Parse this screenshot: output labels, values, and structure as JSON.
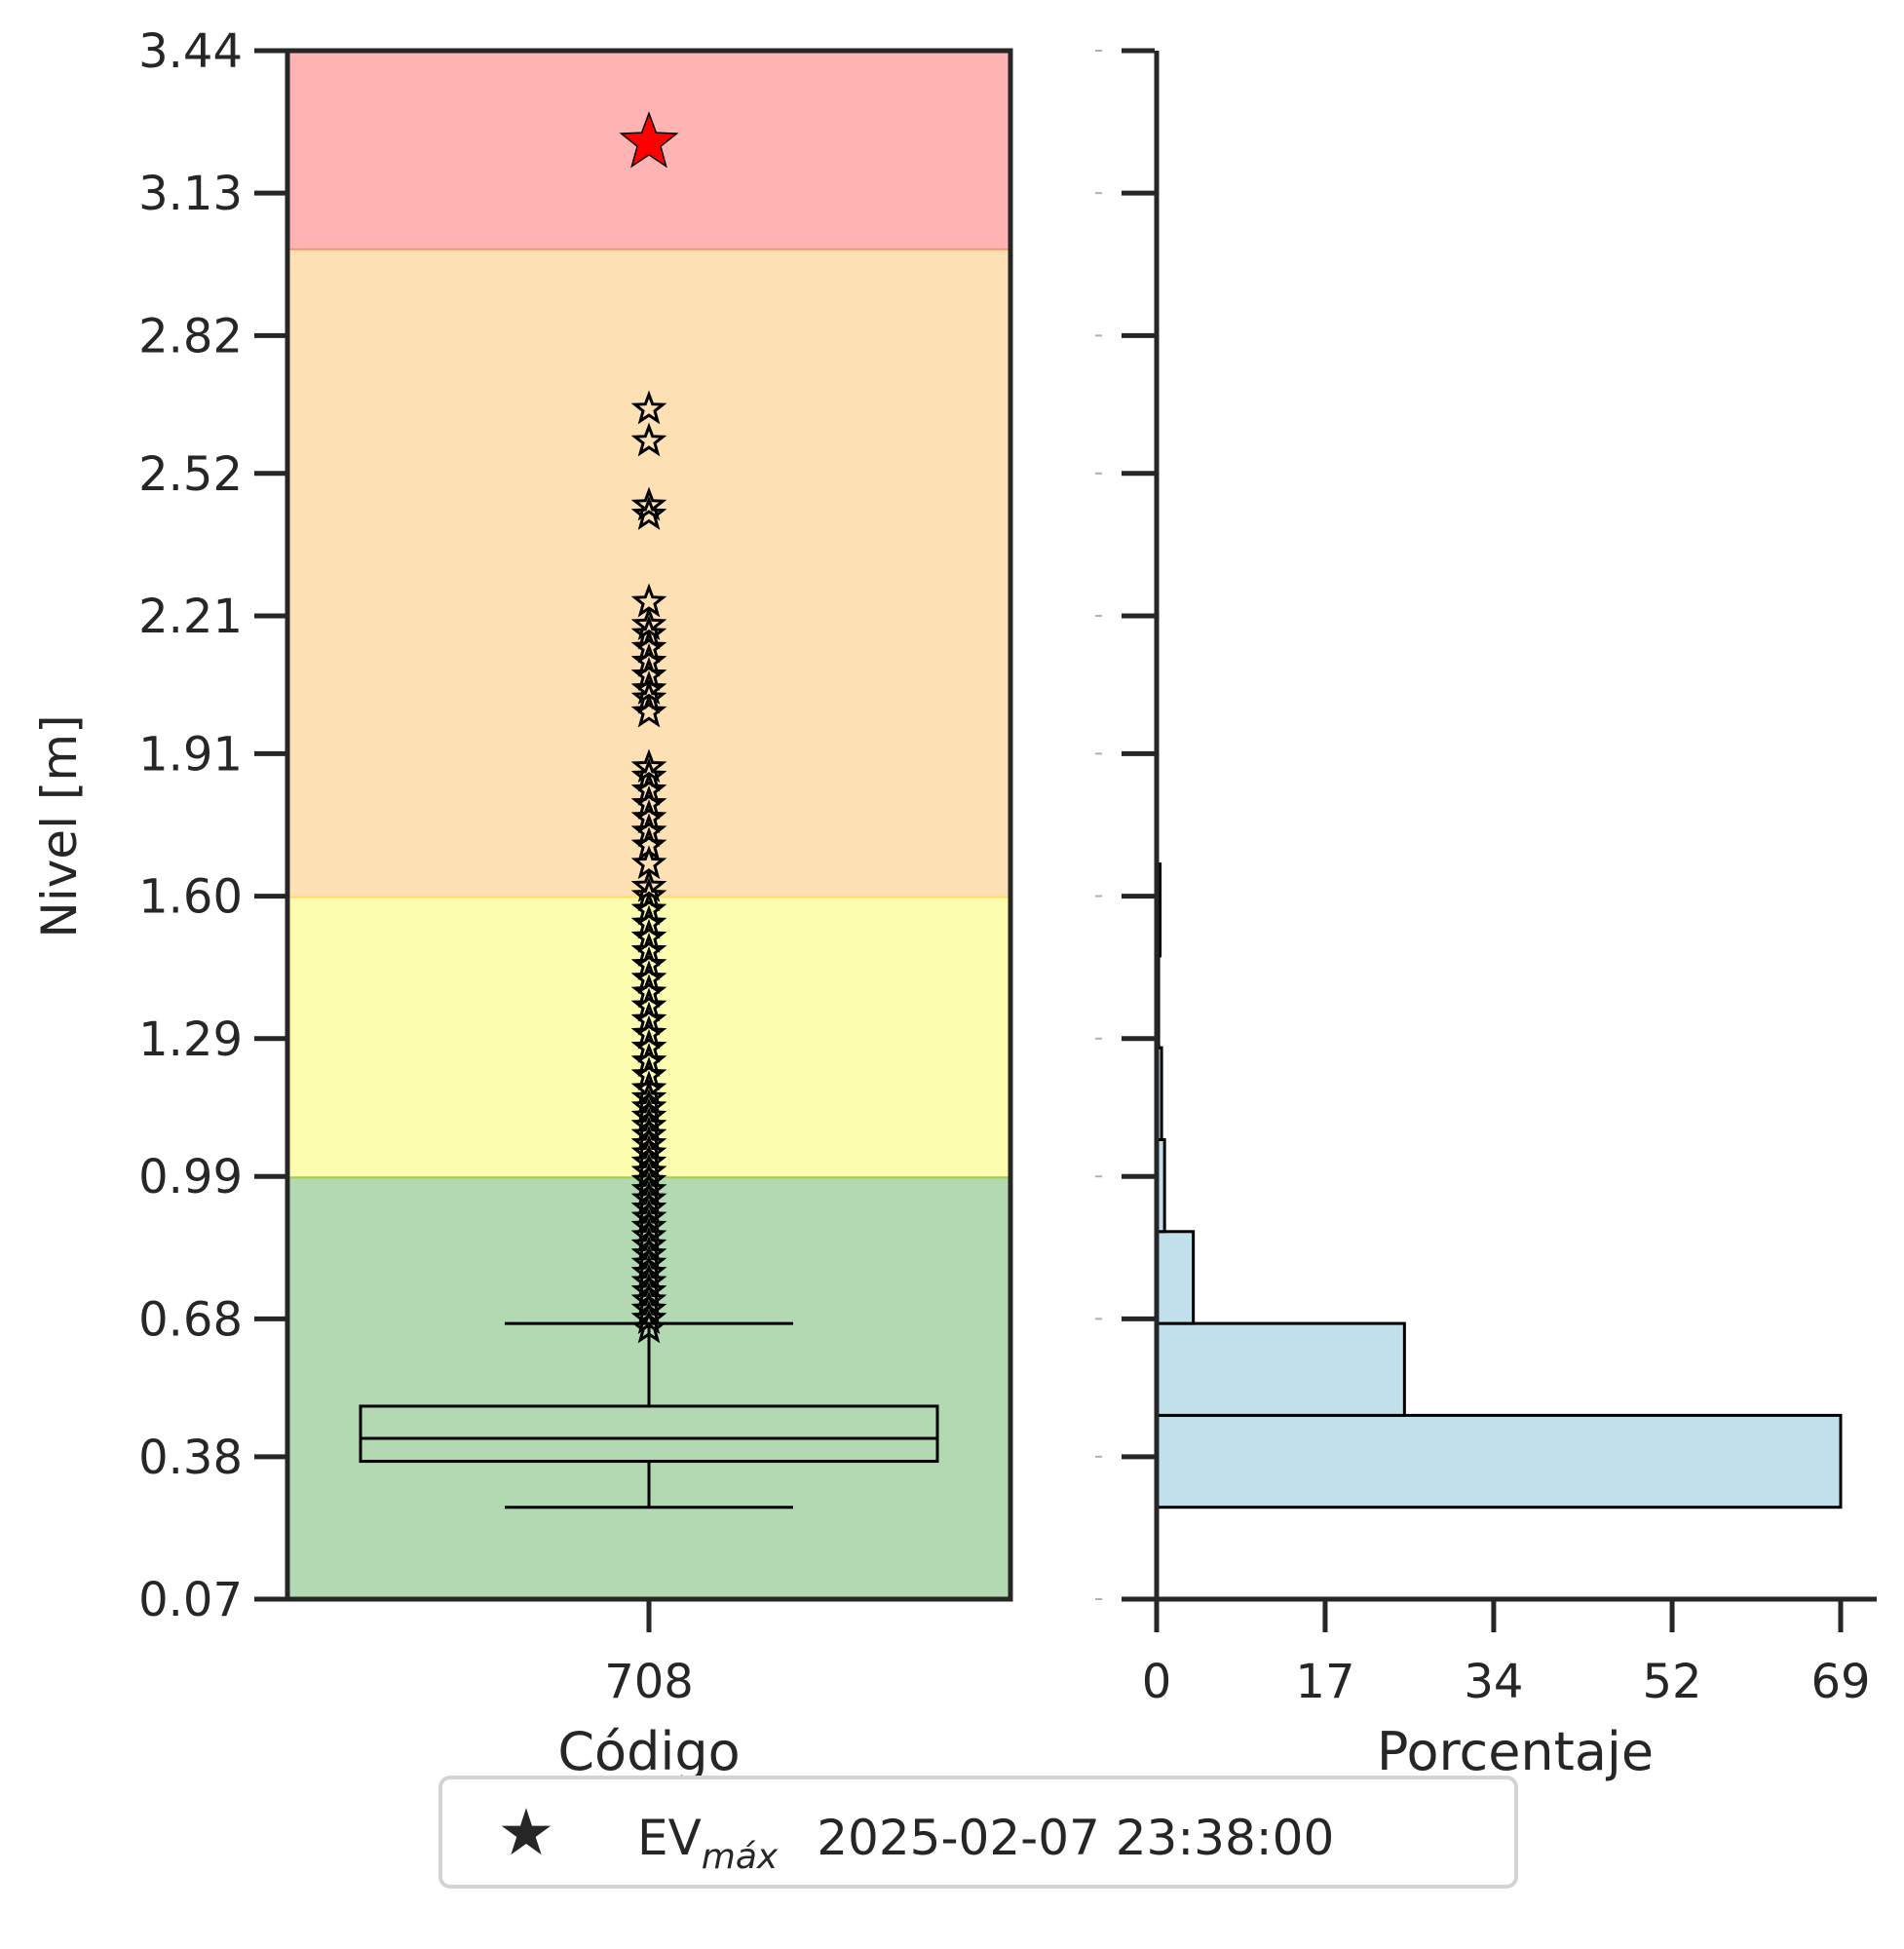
{
  "chart_data": [
    {
      "type": "box",
      "ylabel": "Nivel [m]",
      "xlabel": "Código",
      "categories": [
        "708"
      ],
      "ylim": [
        0.07,
        3.44
      ],
      "yticks": [
        "0.07",
        "0.38",
        "0.68",
        "0.99",
        "1.29",
        "1.60",
        "1.91",
        "2.21",
        "2.52",
        "2.82",
        "3.13",
        "3.44"
      ],
      "bands": [
        {
          "from": 0.07,
          "to": 0.99,
          "color": "#b2d9b2",
          "edge": "#9acd32"
        },
        {
          "from": 0.99,
          "to": 1.6,
          "color": "#fdfdb0",
          "edge": "#ffd54f"
        },
        {
          "from": 1.6,
          "to": 3.01,
          "color": "#fde1b5",
          "edge": "#ff7f50"
        },
        {
          "from": 3.01,
          "to": 3.44,
          "color": "#ffb3b3",
          "edge": "#ff7f50"
        }
      ],
      "box": {
        "whisker_low": 0.27,
        "q1": 0.37,
        "median": 0.42,
        "q3": 0.49,
        "whisker_high": 0.67
      },
      "outliers": [
        0.66,
        0.68,
        0.7,
        0.72,
        0.74,
        0.76,
        0.78,
        0.8,
        0.82,
        0.84,
        0.86,
        0.88,
        0.9,
        0.92,
        0.94,
        0.96,
        0.98,
        1.0,
        1.02,
        1.04,
        1.06,
        1.08,
        1.1,
        1.12,
        1.14,
        1.16,
        1.18,
        1.21,
        1.24,
        1.27,
        1.3,
        1.33,
        1.36,
        1.39,
        1.42,
        1.45,
        1.48,
        1.51,
        1.54,
        1.57,
        1.6,
        1.62,
        1.67,
        1.71,
        1.74,
        1.77,
        1.8,
        1.83,
        1.86,
        1.88,
        2.0,
        2.03,
        2.05,
        2.08,
        2.11,
        2.14,
        2.17,
        2.19,
        2.24,
        2.43,
        2.45,
        2.59,
        2.66
      ],
      "max_event": {
        "value": 3.24,
        "color": "#ff0000"
      }
    },
    {
      "type": "histogram",
      "orientation": "horizontal",
      "xlabel": "Porcentaje",
      "xlim": [
        0,
        69
      ],
      "xticks": [
        "0",
        "17",
        "34",
        "52",
        "69"
      ],
      "bar_color": "#c2e0eb",
      "bins": [
        {
          "from": 0.27,
          "to": 0.47,
          "value": 69
        },
        {
          "from": 0.47,
          "to": 0.67,
          "value": 25
        },
        {
          "from": 0.67,
          "to": 0.87,
          "value": 3.7
        },
        {
          "from": 0.87,
          "to": 1.07,
          "value": 0.8
        },
        {
          "from": 1.07,
          "to": 1.27,
          "value": 0.5
        },
        {
          "from": 1.27,
          "to": 1.47,
          "value": 0.2
        },
        {
          "from": 1.47,
          "to": 1.67,
          "value": 0.35
        },
        {
          "from": 1.67,
          "to": 1.87,
          "value": 0.08
        }
      ]
    }
  ],
  "legend": {
    "symbol": "★",
    "symbol_color": "#ff0000",
    "label_main": "EV",
    "label_sub": "máx",
    "timestamp": "2025-02-07 23:38:00"
  }
}
